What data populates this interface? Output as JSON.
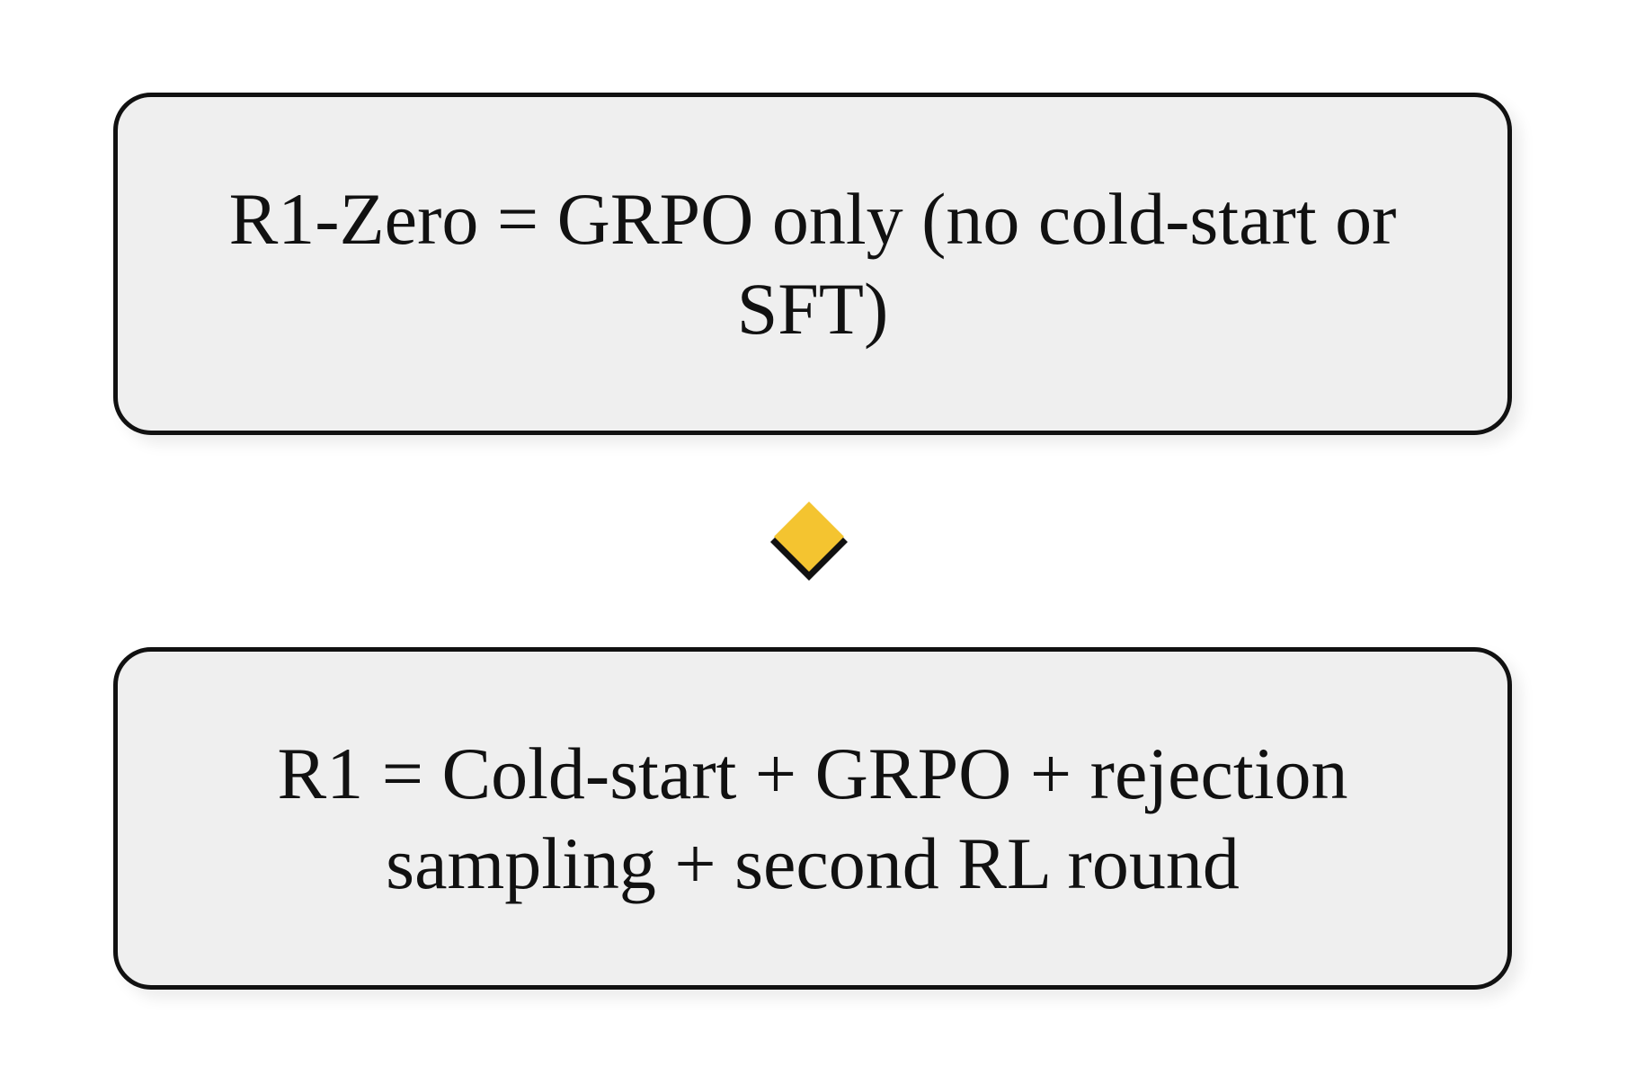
{
  "diagram": {
    "nodes": [
      {
        "id": "r1-zero",
        "label": "R1-Zero = GRPO only (no cold-start or SFT)"
      },
      {
        "id": "r1",
        "label": "R1 = Cold-start + GRPO + rejection sampling + second RL round"
      }
    ],
    "connector": {
      "icon": "diamond-icon",
      "fill": "#f4c430",
      "shadow": "#111111"
    },
    "colors": {
      "node_fill": "#efefef",
      "node_border": "#111111",
      "background": "#ffffff"
    }
  }
}
